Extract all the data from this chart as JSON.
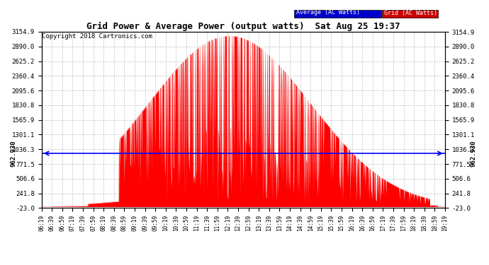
{
  "title": "Grid Power & Average Power (output watts)  Sat Aug 25 19:37",
  "copyright": "Copyright 2018 Cartronics.com",
  "bg_color": "#ffffff",
  "plot_bg_color": "#ffffff",
  "grid_color": "#bbbbbb",
  "bar_color": "#ff0000",
  "avg_line_color": "#0000ff",
  "avg_value": 962.93,
  "avg_label": "962.930",
  "ylim_min": -23.0,
  "ylim_max": 3154.9,
  "ytick_values": [
    -23.0,
    241.8,
    506.6,
    771.5,
    1036.3,
    1301.1,
    1565.9,
    1830.8,
    2095.6,
    2360.4,
    2625.2,
    2890.0,
    3154.9
  ],
  "x_labels": [
    "06:19",
    "06:39",
    "06:59",
    "07:19",
    "07:39",
    "07:59",
    "08:19",
    "08:39",
    "08:59",
    "09:19",
    "09:39",
    "09:59",
    "10:19",
    "10:39",
    "10:59",
    "11:19",
    "11:39",
    "11:59",
    "12:19",
    "12:39",
    "12:59",
    "13:19",
    "13:39",
    "13:59",
    "14:19",
    "14:39",
    "14:59",
    "15:19",
    "15:39",
    "15:59",
    "16:19",
    "16:39",
    "16:59",
    "17:19",
    "17:39",
    "17:59",
    "18:19",
    "18:39",
    "18:59",
    "19:19"
  ],
  "legend_avg_color": "#0000cc",
  "legend_avg_text": "Average (AC Watts)",
  "legend_grid_color": "#cc0000",
  "legend_grid_text": "Grid (AC Watts)"
}
